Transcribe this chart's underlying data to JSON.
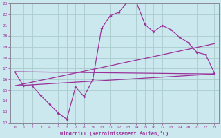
{
  "xlabel": "Windchill (Refroidissement éolien,°C)",
  "xlim": [
    -0.5,
    23.5
  ],
  "ylim": [
    12,
    23
  ],
  "xticks": [
    0,
    1,
    2,
    3,
    4,
    5,
    6,
    7,
    8,
    9,
    10,
    11,
    12,
    13,
    14,
    15,
    16,
    17,
    18,
    19,
    20,
    21,
    22,
    23
  ],
  "yticks": [
    12,
    13,
    14,
    15,
    16,
    17,
    18,
    19,
    20,
    21,
    22,
    23
  ],
  "bg_color": "#cce8ef",
  "line_color": "#993399",
  "grid_color": "#aacccc",
  "zigzag_x": [
    0,
    1,
    2,
    3,
    4,
    5,
    6,
    7,
    8,
    9,
    10,
    11,
    12,
    13,
    14,
    15,
    16,
    17,
    18,
    19,
    20,
    21,
    22,
    23
  ],
  "zigzag_y": [
    16.7,
    15.4,
    15.4,
    14.5,
    13.7,
    12.9,
    12.3,
    15.3,
    14.4,
    16.0,
    20.7,
    21.9,
    22.2,
    23.2,
    23.2,
    21.1,
    20.4,
    21.0,
    20.6,
    19.9,
    19.4,
    18.5,
    18.3,
    16.6
  ],
  "line1_x": [
    0,
    23
  ],
  "line1_y": [
    15.4,
    19.3
  ],
  "line2_x": [
    0,
    23
  ],
  "line2_y": [
    15.4,
    16.5
  ],
  "line3_x": [
    0,
    23
  ],
  "line3_y": [
    16.7,
    16.5
  ]
}
